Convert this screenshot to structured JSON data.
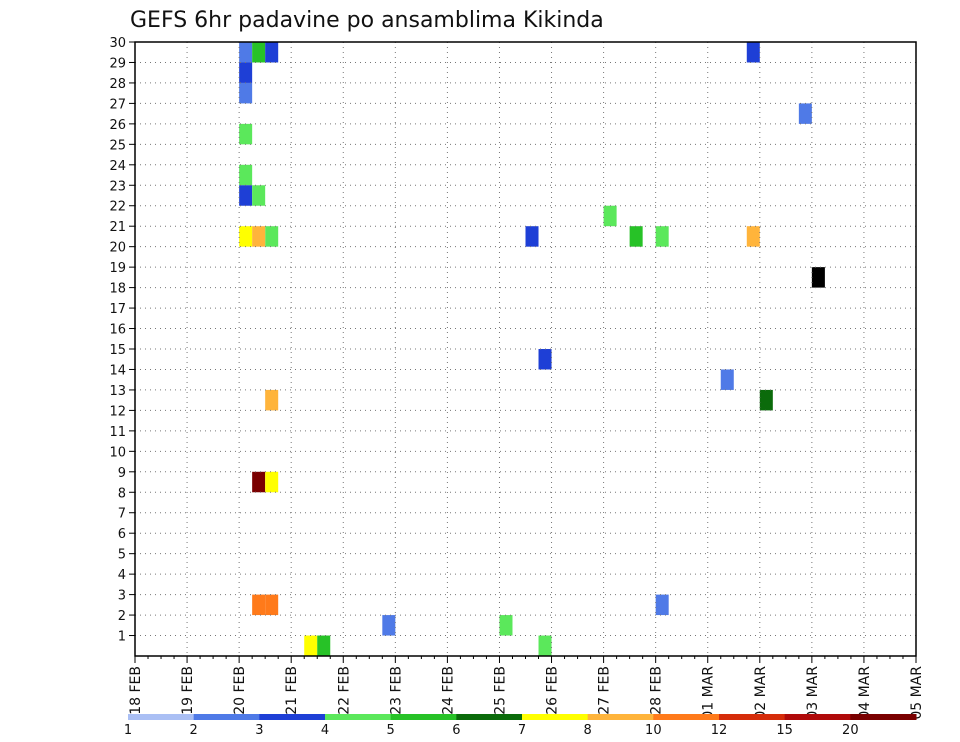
{
  "chart_data": {
    "type": "heatmap",
    "title": "GEFS 6hr padavine po ansamblima Kikinda",
    "xlabel": "",
    "ylabel": "",
    "x_tick_labels": [
      "18 FEB",
      "19 FEB",
      "20 FEB",
      "21 FEB",
      "22 FEB",
      "23 FEB",
      "24 FEB",
      "25 FEB",
      "26 FEB",
      "27 FEB",
      "28 FEB",
      "01 MAR",
      "02 MAR",
      "03 MAR",
      "04 MAR",
      "05 MAR"
    ],
    "y_tick_labels": [
      "1",
      "2",
      "3",
      "4",
      "5",
      "6",
      "7",
      "8",
      "9",
      "10",
      "11",
      "12",
      "13",
      "14",
      "15",
      "16",
      "17",
      "18",
      "19",
      "20",
      "21",
      "22",
      "23",
      "24",
      "25",
      "26",
      "27",
      "28",
      "29",
      "30"
    ],
    "ylim": [
      0,
      30
    ],
    "time_steps_per_day": 4,
    "grid": true,
    "colorbar": {
      "labels": [
        "1",
        "2",
        "3",
        "4",
        "5",
        "6",
        "7",
        "8",
        "10",
        "12",
        "15",
        "20"
      ],
      "colors": [
        "#aabff4",
        "#4f7ae7",
        "#1e3fd6",
        "#5be85b",
        "#27c227",
        "#0b6b0b",
        "#ffff00",
        "#ffb43b",
        "#ff7a1a",
        "#d52c0a",
        "#b00a0a",
        "#7a0000"
      ]
    },
    "cells": [
      {
        "x": 8.0,
        "y": 29,
        "c": 1
      },
      {
        "x": 8.0,
        "y": 28,
        "c": 2
      },
      {
        "x": 8.0,
        "y": 27,
        "c": 1
      },
      {
        "x": 9.0,
        "y": 29,
        "c": 4
      },
      {
        "x": 10.0,
        "y": 29,
        "c": 2
      },
      {
        "x": 8.0,
        "y": 25,
        "c": 3
      },
      {
        "x": 8.0,
        "y": 23,
        "c": 3
      },
      {
        "x": 8.0,
        "y": 22,
        "c": 2
      },
      {
        "x": 9.0,
        "y": 22,
        "c": 3
      },
      {
        "x": 10.0,
        "y": 20,
        "c": 3
      },
      {
        "x": 8.0,
        "y": 20,
        "c": 6
      },
      {
        "x": 9.0,
        "y": 20,
        "c": 7
      },
      {
        "x": 10.0,
        "y": 12,
        "c": 7
      },
      {
        "x": 9.0,
        "y": 8,
        "c": 11
      },
      {
        "x": 10.0,
        "y": 8,
        "c": 6
      },
      {
        "x": 10.0,
        "y": 2,
        "c": 8
      },
      {
        "x": 9.0,
        "y": 2,
        "c": 8
      },
      {
        "x": 13.0,
        "y": 0,
        "c": 6
      },
      {
        "x": 14.0,
        "y": 0,
        "c": 4
      },
      {
        "x": 19.0,
        "y": 1,
        "c": 1
      },
      {
        "x": 28.0,
        "y": 1,
        "c": 3
      },
      {
        "x": 31.0,
        "y": 0,
        "c": 3
      },
      {
        "x": 31.0,
        "y": 14,
        "c": 2
      },
      {
        "x": 40.0,
        "y": 2,
        "c": 1
      },
      {
        "x": 40.0,
        "y": 20,
        "c": 3
      },
      {
        "x": 45.0,
        "y": 13,
        "c": 1
      },
      {
        "x": 30.0,
        "y": 20,
        "c": 2
      },
      {
        "x": 36.0,
        "y": 21,
        "c": 3
      },
      {
        "x": 38.0,
        "y": 20,
        "c": 4
      },
      {
        "x": 47.0,
        "y": 29,
        "c": 2
      },
      {
        "x": 47.0,
        "y": 20,
        "c": 7
      },
      {
        "x": 52.0,
        "y": 18,
        "c": 12
      },
      {
        "x": 51.0,
        "y": 26,
        "c": 1
      },
      {
        "x": 48.0,
        "y": 12,
        "c": 5
      }
    ]
  }
}
